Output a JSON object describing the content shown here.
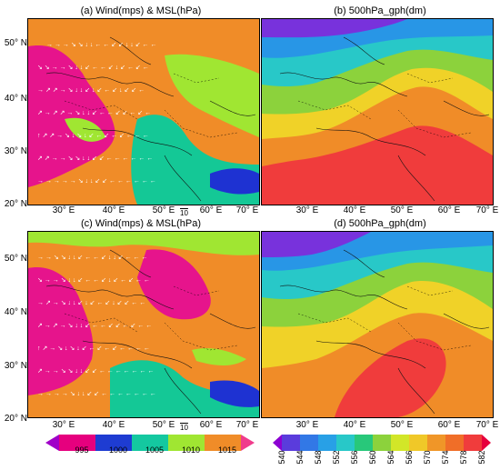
{
  "panels": {
    "a": {
      "title": "(a) Wind(mps) & MSL(hPa)"
    },
    "b": {
      "title": "(b) 500hPa_gph(dm)"
    },
    "c": {
      "title": "(c) Wind(mps) & MSL(hPa)"
    },
    "d": {
      "title": "(d) 500hPa_gph(dm)"
    }
  },
  "lat_labels_top": [
    "50° N",
    "40° N",
    "30° N",
    "20° N"
  ],
  "lat_labels_bottom": [
    "50° N",
    "40° N",
    "30° N",
    "20° N"
  ],
  "lon_labels_left": [
    "30° E",
    "40° E",
    "50° E",
    "60° E",
    "70° E"
  ],
  "lon_labels_right": [
    "30° E",
    "40° E",
    "50° E",
    "60° E",
    "70° E"
  ],
  "ref_vector": "10",
  "mslp_colorbar": {
    "ticks": [
      "995",
      "1000",
      "1005",
      "1010",
      "1015"
    ],
    "colors": [
      "#a000c8",
      "#e6007e",
      "#1e3cd2",
      "#14c8a0",
      "#a0e632",
      "#f08c28",
      "#f03c8c"
    ]
  },
  "gph_colorbar": {
    "ticks": [
      "540",
      "544",
      "548",
      "552",
      "556",
      "560",
      "564",
      "566",
      "570",
      "574",
      "578",
      "582"
    ],
    "colors": [
      "#8c00d2",
      "#5a3cdc",
      "#3278e6",
      "#28a0e6",
      "#28c8c8",
      "#28c87a",
      "#8cd23c",
      "#d2e628",
      "#f0c828",
      "#f09628",
      "#f06e28",
      "#f03c3c",
      "#e6003c"
    ]
  },
  "colors": {
    "mslp_low": "#e6148c",
    "mslp_1005": "#14c896",
    "mslp_1010": "#a0e632",
    "mslp_1015": "#f08c28",
    "mslp_deep": "#1e32d2",
    "mslp_1000": "#9628c8",
    "gph_high": "#f03c3c",
    "gph_orange": "#f08c28",
    "gph_yellow": "#f0d228",
    "gph_green": "#8cd23c",
    "gph_cyan": "#28c8c8",
    "gph_blue": "#2896e6",
    "gph_purple": "#7832dc"
  }
}
